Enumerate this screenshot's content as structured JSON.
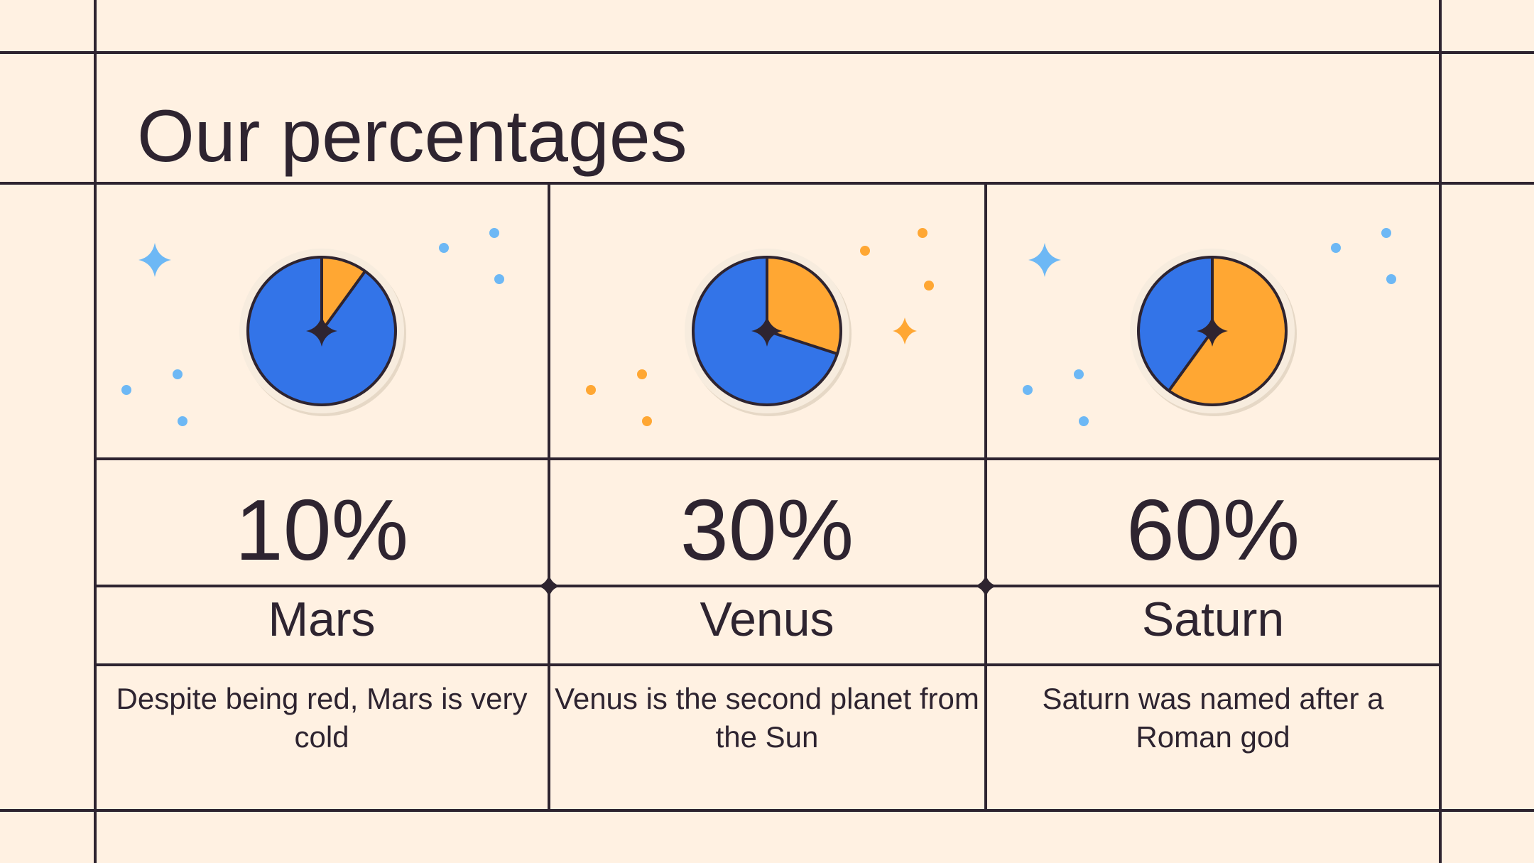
{
  "title": "Our percentages",
  "colors": {
    "background": "#fff1e2",
    "ink": "#2e2430",
    "blue": "#3374e8",
    "orange": "#ffa733",
    "light_blue": "#6db8f5",
    "ring": "#f7ecde"
  },
  "chart_data": [
    {
      "type": "pie",
      "categories": [
        "Mars",
        "Rest"
      ],
      "values": [
        10,
        90
      ],
      "label": "10%",
      "name": "Mars",
      "description": "Despite being red, Mars is very cold"
    },
    {
      "type": "pie",
      "categories": [
        "Venus",
        "Rest"
      ],
      "values": [
        30,
        70
      ],
      "label": "30%",
      "name": "Venus",
      "description": "Venus is the second planet from the Sun"
    },
    {
      "type": "pie",
      "categories": [
        "Saturn",
        "Rest"
      ],
      "values": [
        60,
        40
      ],
      "label": "60%",
      "name": "Saturn",
      "description": "Saturn was named after a Roman god"
    }
  ]
}
